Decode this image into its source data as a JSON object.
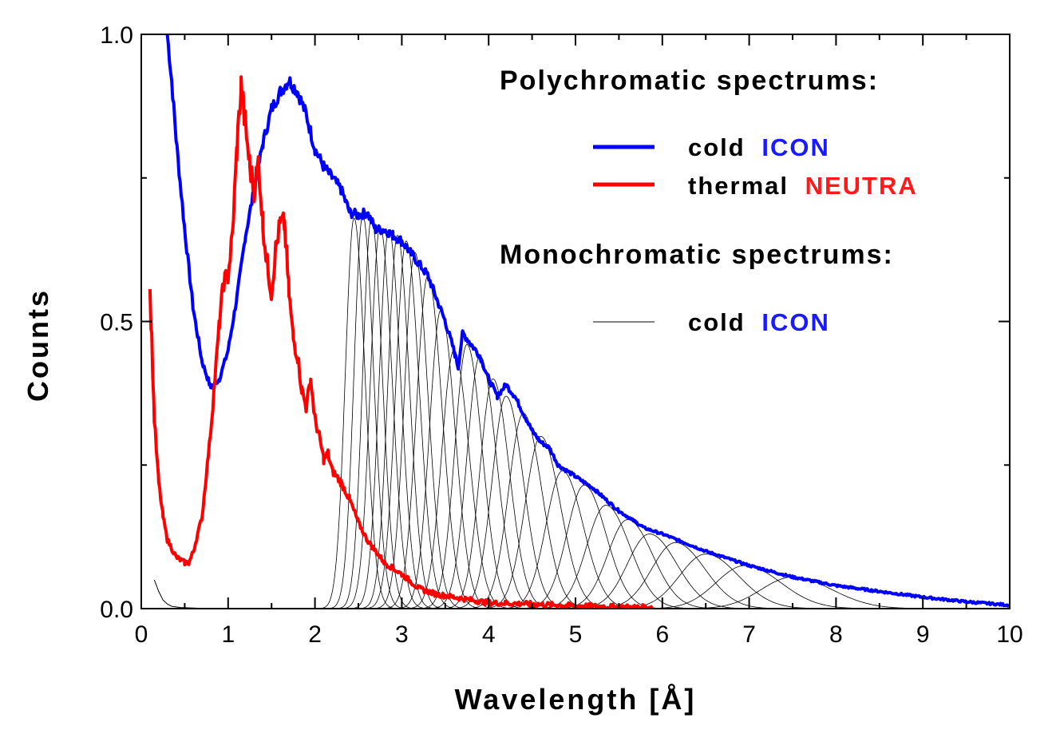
{
  "chart_data": {
    "type": "line",
    "title": "",
    "xlabel": "Wavelength [Å]",
    "ylabel": "Counts",
    "xlim": [
      0,
      10
    ],
    "ylim": [
      0,
      1
    ],
    "x_ticks": [
      "0",
      "1",
      "2",
      "3",
      "4",
      "5",
      "6",
      "7",
      "8",
      "9",
      "10"
    ],
    "y_ticks": [
      "0.0",
      "0.5",
      "1.0"
    ],
    "grid": false,
    "legend": {
      "placement": "top-right",
      "poly_heading": "Polychromatic spectrums:",
      "mono_heading": "Monochromatic spectrums:",
      "entries": [
        {
          "prefix": "cold",
          "name": "ICON",
          "name_color": "#1a1aff",
          "group": "poly",
          "series": "icon"
        },
        {
          "prefix": "thermal",
          "name": "NEUTRA",
          "name_color": "#ff1a1a",
          "group": "poly",
          "series": "neutra"
        },
        {
          "prefix": "cold",
          "name": "ICON",
          "name_color": "#1a1aff",
          "group": "mono",
          "series": "mono"
        }
      ]
    },
    "series": [
      {
        "id": "icon",
        "color": "#0000ff",
        "x": [
          0.3,
          0.35,
          0.4,
          0.5,
          0.6,
          0.7,
          0.8,
          0.9,
          1.0,
          1.1,
          1.2,
          1.3,
          1.4,
          1.5,
          1.6,
          1.7,
          1.8,
          1.9,
          2.0,
          2.1,
          2.2,
          2.3,
          2.4,
          2.5,
          2.6,
          2.7,
          2.8,
          2.9,
          3.0,
          3.1,
          3.2,
          3.3,
          3.4,
          3.5,
          3.6,
          3.65,
          3.7,
          3.8,
          3.9,
          4.0,
          4.1,
          4.2,
          4.3,
          4.4,
          4.5,
          4.6,
          4.7,
          4.8,
          5.0,
          5.2,
          5.5,
          5.8,
          6.0,
          6.5,
          7.0,
          7.5,
          8.0,
          8.5,
          9.0,
          9.5,
          10.0
        ],
        "y": [
          1.0,
          0.92,
          0.82,
          0.66,
          0.52,
          0.43,
          0.385,
          0.4,
          0.45,
          0.54,
          0.65,
          0.73,
          0.81,
          0.87,
          0.9,
          0.92,
          0.9,
          0.86,
          0.8,
          0.77,
          0.75,
          0.73,
          0.69,
          0.685,
          0.69,
          0.66,
          0.66,
          0.65,
          0.64,
          0.62,
          0.6,
          0.58,
          0.54,
          0.5,
          0.45,
          0.42,
          0.48,
          0.46,
          0.44,
          0.4,
          0.37,
          0.39,
          0.37,
          0.34,
          0.31,
          0.29,
          0.28,
          0.25,
          0.23,
          0.21,
          0.17,
          0.14,
          0.13,
          0.1,
          0.075,
          0.055,
          0.04,
          0.03,
          0.02,
          0.012,
          0.006
        ]
      },
      {
        "id": "neutra",
        "color": "#ff0000",
        "x": [
          0.1,
          0.12,
          0.15,
          0.2,
          0.25,
          0.3,
          0.4,
          0.5,
          0.55,
          0.6,
          0.7,
          0.8,
          0.9,
          0.95,
          1.0,
          1.05,
          1.1,
          1.15,
          1.2,
          1.25,
          1.3,
          1.35,
          1.4,
          1.45,
          1.5,
          1.55,
          1.6,
          1.65,
          1.7,
          1.75,
          1.8,
          1.85,
          1.9,
          1.95,
          2.0,
          2.05,
          2.1,
          2.15,
          2.2,
          2.3,
          2.4,
          2.5,
          2.6,
          2.7,
          2.8,
          3.0,
          3.2,
          3.4,
          3.6,
          3.8,
          4.0,
          4.5,
          5.0,
          5.5,
          5.9
        ],
        "y": [
          0.55,
          0.47,
          0.33,
          0.22,
          0.16,
          0.12,
          0.09,
          0.08,
          0.08,
          0.1,
          0.16,
          0.31,
          0.5,
          0.57,
          0.58,
          0.65,
          0.8,
          0.91,
          0.84,
          0.77,
          0.73,
          0.78,
          0.67,
          0.6,
          0.55,
          0.63,
          0.67,
          0.67,
          0.55,
          0.47,
          0.44,
          0.38,
          0.35,
          0.4,
          0.33,
          0.3,
          0.26,
          0.27,
          0.24,
          0.22,
          0.19,
          0.15,
          0.12,
          0.1,
          0.08,
          0.06,
          0.035,
          0.025,
          0.02,
          0.015,
          0.01,
          0.008,
          0.005,
          0.003,
          0.002
        ]
      }
    ],
    "mono_series": {
      "color": "#000000",
      "tail": {
        "x": [
          0.15,
          0.2,
          0.25,
          0.3,
          0.35,
          0.45,
          0.6,
          0.8
        ],
        "y": [
          0.05,
          0.03,
          0.015,
          0.008,
          0.004,
          0.002,
          0.001,
          0.0
        ]
      },
      "peaks": [
        {
          "center": 2.45,
          "height": 0.68,
          "width": 0.1
        },
        {
          "center": 2.55,
          "height": 0.685,
          "width": 0.1
        },
        {
          "center": 2.65,
          "height": 0.68,
          "width": 0.1
        },
        {
          "center": 2.75,
          "height": 0.665,
          "width": 0.11
        },
        {
          "center": 2.85,
          "height": 0.66,
          "width": 0.11
        },
        {
          "center": 2.95,
          "height": 0.65,
          "width": 0.11
        },
        {
          "center": 3.05,
          "height": 0.64,
          "width": 0.12
        },
        {
          "center": 3.15,
          "height": 0.62,
          "width": 0.12
        },
        {
          "center": 3.3,
          "height": 0.58,
          "width": 0.13
        },
        {
          "center": 3.45,
          "height": 0.52,
          "width": 0.13
        },
        {
          "center": 3.6,
          "height": 0.45,
          "width": 0.14
        },
        {
          "center": 3.75,
          "height": 0.46,
          "width": 0.14
        },
        {
          "center": 3.9,
          "height": 0.44,
          "width": 0.15
        },
        {
          "center": 4.05,
          "height": 0.4,
          "width": 0.15
        },
        {
          "center": 4.2,
          "height": 0.37,
          "width": 0.16
        },
        {
          "center": 4.4,
          "height": 0.34,
          "width": 0.17
        },
        {
          "center": 4.6,
          "height": 0.3,
          "width": 0.18
        },
        {
          "center": 4.85,
          "height": 0.24,
          "width": 0.19
        },
        {
          "center": 5.1,
          "height": 0.215,
          "width": 0.2
        },
        {
          "center": 5.35,
          "height": 0.18,
          "width": 0.22
        },
        {
          "center": 5.6,
          "height": 0.155,
          "width": 0.23
        },
        {
          "center": 5.85,
          "height": 0.13,
          "width": 0.25
        },
        {
          "center": 6.15,
          "height": 0.115,
          "width": 0.27
        },
        {
          "center": 6.5,
          "height": 0.095,
          "width": 0.3
        },
        {
          "center": 6.95,
          "height": 0.075,
          "width": 0.33
        },
        {
          "center": 7.5,
          "height": 0.055,
          "width": 0.36
        }
      ]
    }
  }
}
